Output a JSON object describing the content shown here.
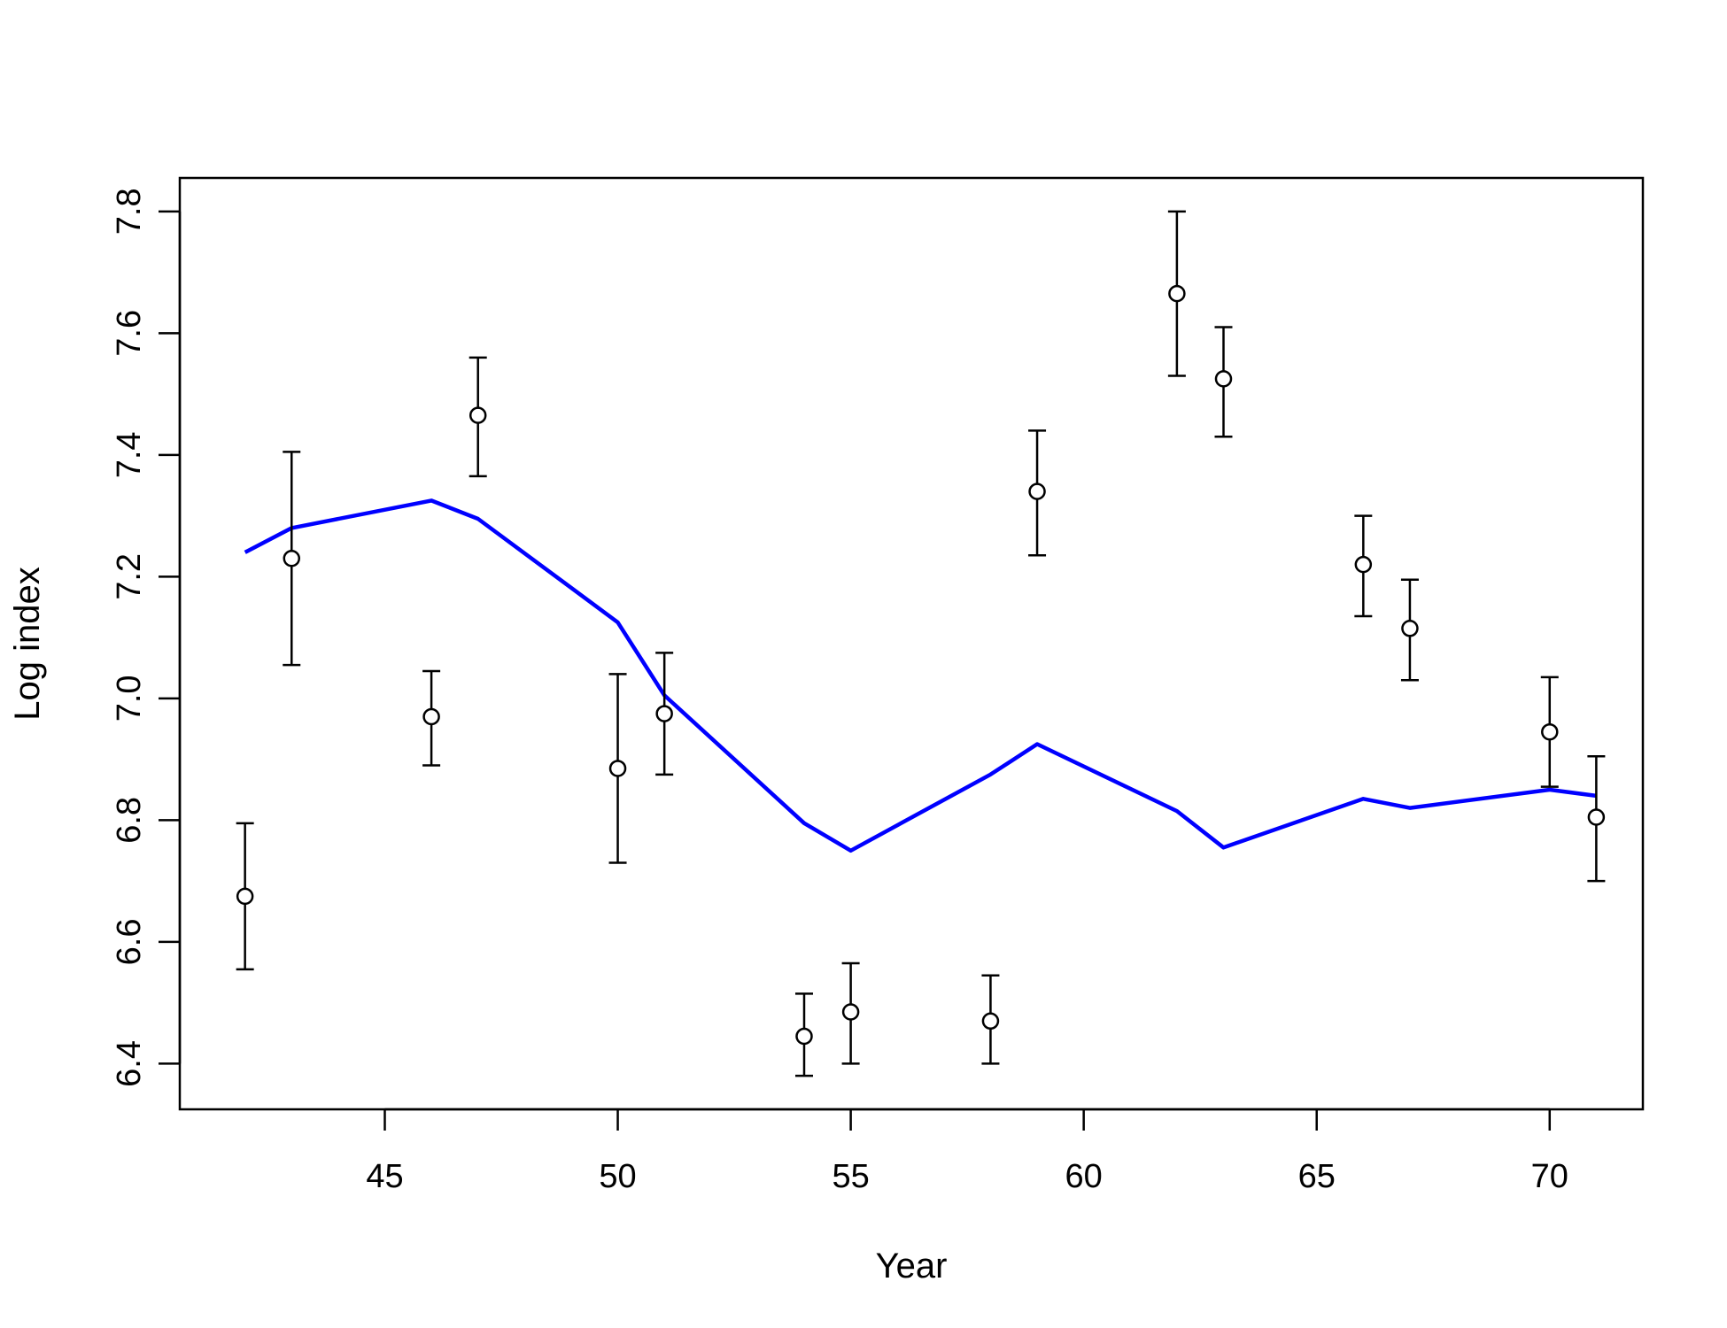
{
  "chart_data": {
    "type": "scatter",
    "title": "",
    "xlabel": "Year",
    "ylabel": "Log index",
    "xlim": [
      40.6,
      72
    ],
    "ylim": [
      6.325,
      7.855
    ],
    "x_ticks": [
      45,
      50,
      55,
      60,
      65,
      70
    ],
    "x_tick_labels": [
      "45",
      "50",
      "55",
      "60",
      "65",
      "70"
    ],
    "y_ticks": [
      6.4,
      6.6,
      6.8,
      7.0,
      7.2,
      7.4,
      7.6,
      7.8
    ],
    "y_tick_labels": [
      "6.4",
      "6.6",
      "6.8",
      "7.0",
      "7.2",
      "7.4",
      "7.6",
      "7.8"
    ],
    "grid": false,
    "line_color": "#0000ff",
    "point_color": "#000000",
    "observations": {
      "x": [
        42,
        43,
        46,
        47,
        50,
        51,
        54,
        55,
        58,
        59,
        62,
        63,
        66,
        67,
        70,
        71
      ],
      "y": [
        6.675,
        7.23,
        6.97,
        7.465,
        6.885,
        6.975,
        6.445,
        6.485,
        6.47,
        7.34,
        7.665,
        7.525,
        7.22,
        7.115,
        6.945,
        6.805
      ],
      "lower": [
        6.555,
        7.055,
        6.89,
        7.365,
        6.73,
        6.875,
        6.38,
        6.4,
        6.4,
        7.235,
        7.53,
        7.43,
        7.135,
        7.03,
        6.855,
        6.7
      ],
      "upper": [
        6.795,
        7.405,
        7.045,
        7.56,
        7.04,
        7.075,
        6.515,
        6.565,
        6.545,
        7.44,
        7.8,
        7.61,
        7.3,
        7.195,
        7.035,
        6.905
      ]
    },
    "fitted": {
      "x": [
        42,
        43,
        46,
        47,
        50,
        51,
        54,
        55,
        58,
        59,
        62,
        63,
        66,
        67,
        70,
        71
      ],
      "y": [
        7.24,
        7.28,
        7.325,
        7.295,
        7.125,
        7.005,
        6.795,
        6.75,
        6.875,
        6.925,
        6.815,
        6.755,
        6.835,
        6.82,
        6.85,
        6.84
      ]
    }
  }
}
